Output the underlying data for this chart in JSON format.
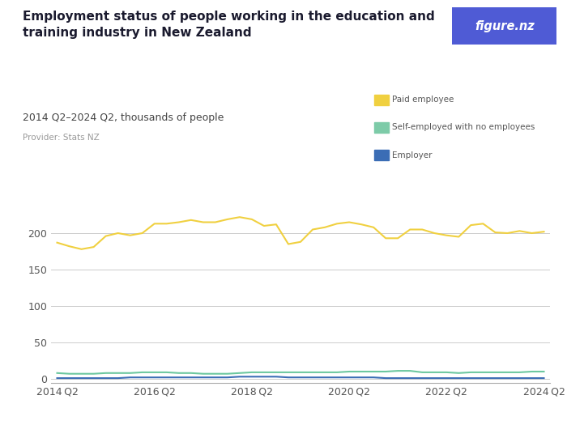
{
  "title_line1": "Employment status of people working in the education and",
  "title_line2": "training industry in New Zealand",
  "subtitle": "2014 Q2–2024 Q2, thousands of people",
  "provider": "Provider: Stats NZ",
  "logo_text": "figure.nz",
  "logo_bg": "#4F5BD5",
  "x_labels": [
    "2014 Q2",
    "2016 Q2",
    "2018 Q2",
    "2020 Q2",
    "2022 Q2",
    "2024 Q2"
  ],
  "x_tick_positions": [
    0,
    8,
    16,
    24,
    32,
    40
  ],
  "legend": [
    "Paid employee",
    "Self-employed with no employees",
    "Employer"
  ],
  "line_colors": [
    "#F0D040",
    "#6DC8A0",
    "#3B6DB5"
  ],
  "legend_colors": [
    "#F0D040",
    "#7DCBA8",
    "#3B6DB5"
  ],
  "paid_employee": [
    187,
    182,
    178,
    181,
    196,
    200,
    197,
    200,
    213,
    213,
    215,
    218,
    215,
    215,
    219,
    222,
    219,
    210,
    212,
    185,
    188,
    205,
    208,
    213,
    215,
    212,
    208,
    193,
    193,
    205,
    205,
    200,
    197,
    195,
    211,
    213,
    201,
    200,
    203,
    200,
    202
  ],
  "self_employed": [
    8,
    7,
    7,
    7,
    8,
    8,
    8,
    9,
    9,
    9,
    8,
    8,
    7,
    7,
    7,
    8,
    9,
    9,
    9,
    9,
    9,
    9,
    9,
    9,
    10,
    10,
    10,
    10,
    11,
    11,
    9,
    9,
    9,
    8,
    9,
    9,
    9,
    9,
    9,
    10,
    10
  ],
  "employer": [
    1,
    1,
    1,
    1,
    1,
    1,
    2,
    2,
    2,
    2,
    2,
    2,
    2,
    2,
    2,
    3,
    3,
    3,
    3,
    2,
    2,
    2,
    2,
    2,
    2,
    2,
    2,
    1,
    1,
    1,
    1,
    1,
    1,
    1,
    1,
    1,
    1,
    1,
    1,
    1,
    1
  ],
  "ylim": [
    -5,
    240
  ],
  "yticks": [
    0,
    50,
    100,
    150,
    200
  ],
  "background_color": "#ffffff",
  "grid_color": "#cccccc",
  "title_color": "#1a1a2e",
  "subtitle_color": "#444444",
  "provider_color": "#999999",
  "tick_label_color": "#555555"
}
